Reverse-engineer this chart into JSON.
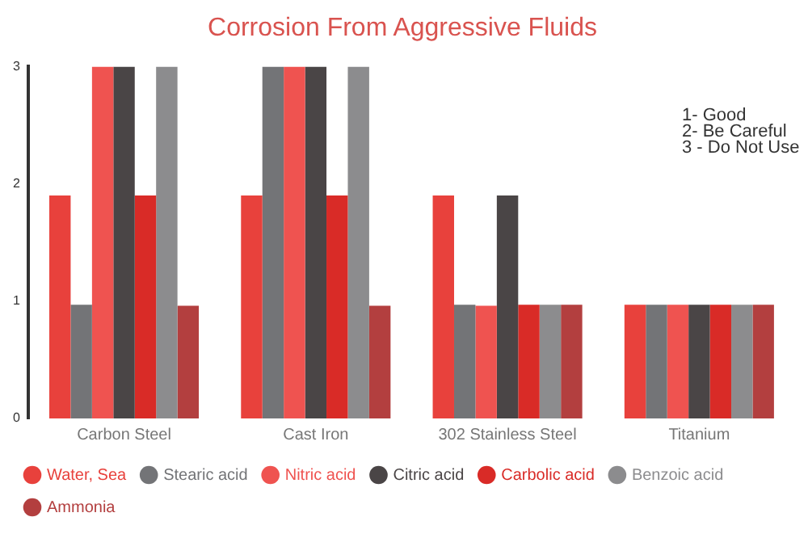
{
  "chart_data": {
    "type": "bar",
    "title": "Corrosion From Aggressive Fluids",
    "categories": [
      "Carbon Steel",
      "Cast Iron",
      "302 Stainless Steel",
      "Titanium"
    ],
    "series": [
      {
        "name": "Water, Sea",
        "color": "#e8413c",
        "values": [
          1.9,
          1.9,
          1.9,
          0.97
        ]
      },
      {
        "name": "Stearic acid",
        "color": "#737477",
        "values": [
          0.97,
          3,
          0.97,
          0.97
        ]
      },
      {
        "name": "Nitric acid",
        "color": "#ef5350",
        "values": [
          3,
          3,
          0.96,
          0.97
        ]
      },
      {
        "name": "Citric acid",
        "color": "#4a4546",
        "values": [
          3,
          3,
          1.9,
          0.97
        ]
      },
      {
        "name": "Carbolic acid",
        "color": "#d92b27",
        "values": [
          1.9,
          1.9,
          0.97,
          0.97
        ]
      },
      {
        "name": "Benzoic acid",
        "color": "#8c8c8e",
        "values": [
          3,
          3,
          0.97,
          0.97
        ]
      },
      {
        "name": "Ammonia",
        "color": "#b33f3f",
        "values": [
          0.96,
          0.96,
          0.97,
          0.97
        ]
      }
    ],
    "ylim": [
      0,
      3
    ],
    "yticks": [
      0,
      1,
      2,
      3
    ],
    "grid": false,
    "legend": "bottom",
    "annotations": [
      "1- Good",
      "2- Be Careful",
      "3 - Do Not Use"
    ]
  }
}
